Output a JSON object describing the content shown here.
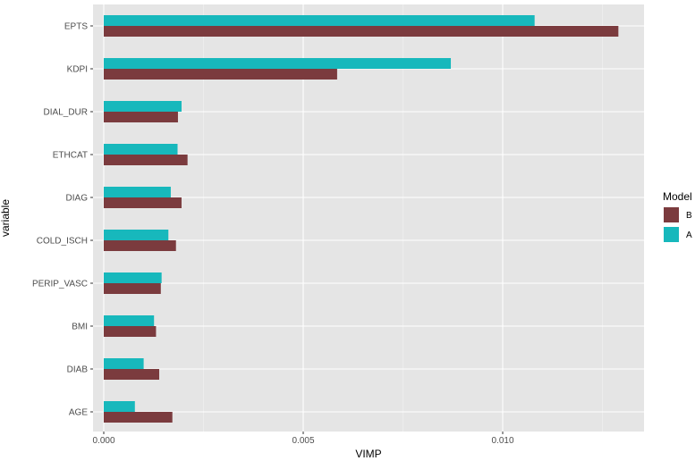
{
  "chart_data": {
    "type": "bar",
    "orientation": "horizontal",
    "xlabel": "VIMP",
    "ylabel": "variable",
    "xlim": [
      -0.00025,
      0.0135
    ],
    "x_ticks": [
      {
        "value": 0.0,
        "label": "0.000"
      },
      {
        "value": 0.005,
        "label": "0.005"
      },
      {
        "value": 0.01,
        "label": "0.010"
      }
    ],
    "categories": [
      "EPTS",
      "KDPI",
      "DIAL_DUR",
      "ETHCAT",
      "DIAG",
      "COLD_ISCH",
      "PERIP_VASC",
      "BMI",
      "DIAB",
      "AGE"
    ],
    "series": [
      {
        "name": "A",
        "color": "#17B8BC",
        "values": [
          0.0108,
          0.0087,
          0.00195,
          0.00185,
          0.00168,
          0.00162,
          0.00145,
          0.00126,
          0.001,
          0.00078
        ]
      },
      {
        "name": "B",
        "color": "#7B3B3E",
        "values": [
          0.0129,
          0.00585,
          0.00186,
          0.0021,
          0.00195,
          0.00181,
          0.00143,
          0.00131,
          0.00139,
          0.00172
        ]
      }
    ],
    "legend": {
      "title": "Model",
      "position": "right",
      "entries": [
        {
          "label": "B",
          "color": "#7B3B3E"
        },
        {
          "label": "A",
          "color": "#17B8BC"
        }
      ]
    },
    "grid": true,
    "panel_background": "#E5E5E5",
    "grid_color": "#FFFFFF"
  }
}
